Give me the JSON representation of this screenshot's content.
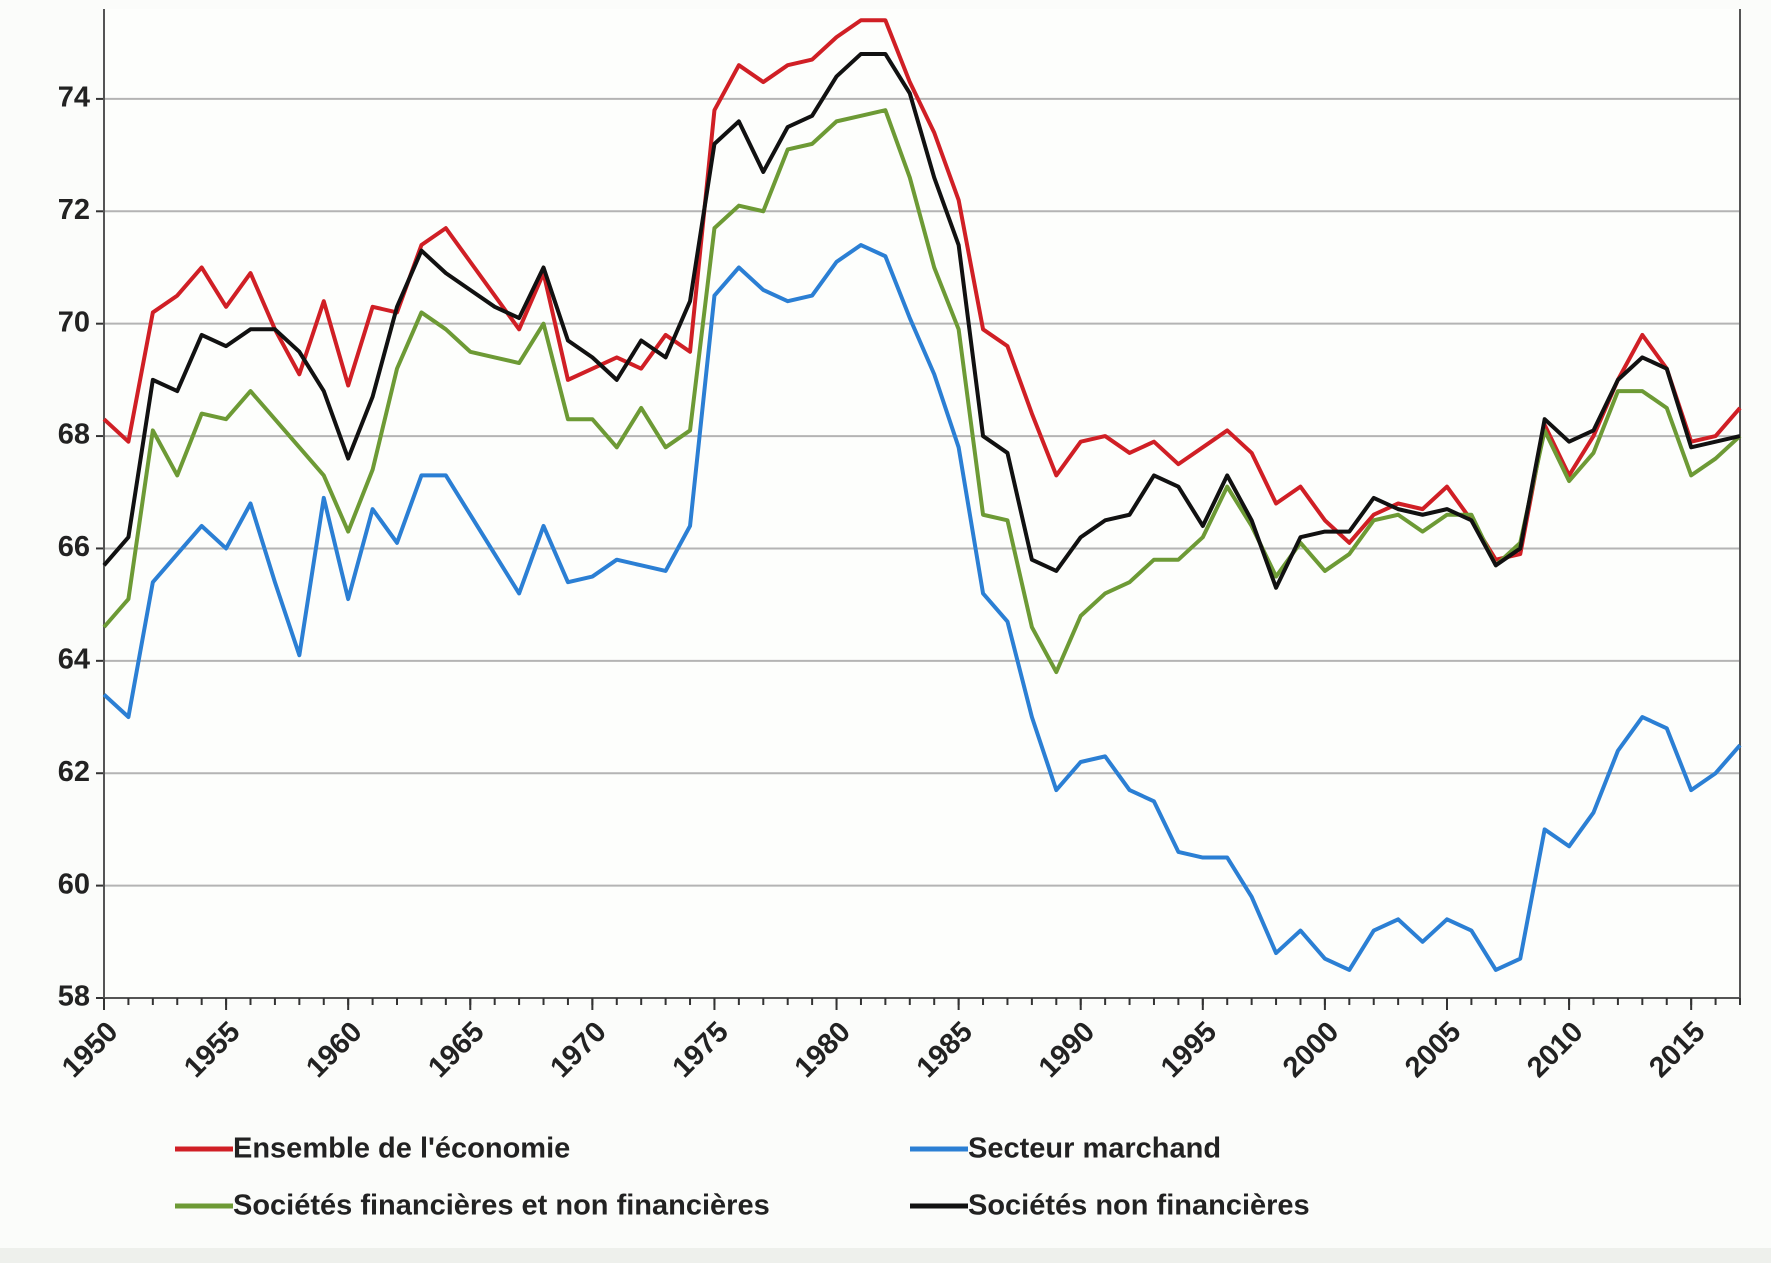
{
  "chart_data": {
    "type": "line",
    "x": [
      1950,
      1951,
      1952,
      1953,
      1954,
      1955,
      1956,
      1957,
      1958,
      1959,
      1960,
      1961,
      1962,
      1963,
      1964,
      1965,
      1966,
      1967,
      1968,
      1969,
      1970,
      1971,
      1972,
      1973,
      1974,
      1975,
      1976,
      1977,
      1978,
      1979,
      1980,
      1981,
      1982,
      1983,
      1984,
      1985,
      1986,
      1987,
      1988,
      1989,
      1990,
      1991,
      1992,
      1993,
      1994,
      1995,
      1996,
      1997,
      1998,
      1999,
      2000,
      2001,
      2002,
      2003,
      2004,
      2005,
      2006,
      2007,
      2008,
      2009,
      2010,
      2011,
      2012,
      2013,
      2014,
      2015,
      2016,
      2017
    ],
    "series": [
      {
        "name": "Ensemble de l'économie",
        "color": "#d01f25",
        "values": [
          68.3,
          67.9,
          70.2,
          70.5,
          71.0,
          70.3,
          70.9,
          69.9,
          69.1,
          70.4,
          68.9,
          70.3,
          70.2,
          71.4,
          71.7,
          71.1,
          70.5,
          69.9,
          70.9,
          69.0,
          69.2,
          69.4,
          69.2,
          69.8,
          69.5,
          73.8,
          74.6,
          74.3,
          74.6,
          74.7,
          75.1,
          75.4,
          75.4,
          74.3,
          73.4,
          72.2,
          69.9,
          69.6,
          68.4,
          67.3,
          67.9,
          68.0,
          67.7,
          67.9,
          67.5,
          67.8,
          68.1,
          67.7,
          66.8,
          67.1,
          66.5,
          66.1,
          66.6,
          66.8,
          66.7,
          67.1,
          66.5,
          65.8,
          65.9,
          68.2,
          67.3,
          68.0,
          69.0,
          69.8,
          69.2,
          67.9,
          68.0,
          68.5
        ]
      },
      {
        "name": "Secteur marchand",
        "color": "#2b7fd4",
        "values": [
          63.4,
          63.0,
          65.4,
          65.9,
          66.4,
          66.0,
          66.8,
          65.4,
          64.1,
          66.9,
          65.1,
          66.7,
          66.1,
          67.3,
          67.3,
          66.6,
          65.9,
          65.2,
          66.4,
          65.4,
          65.5,
          65.8,
          65.7,
          65.6,
          66.4,
          70.5,
          71.0,
          70.6,
          70.4,
          70.5,
          71.1,
          71.4,
          71.2,
          70.1,
          69.1,
          67.8,
          65.2,
          64.7,
          63.0,
          61.7,
          62.2,
          62.3,
          61.7,
          61.5,
          60.6,
          60.5,
          60.5,
          59.8,
          58.8,
          59.2,
          58.7,
          58.5,
          59.2,
          59.4,
          59.0,
          59.4,
          59.2,
          58.5,
          58.7,
          61.0,
          60.7,
          61.3,
          62.4,
          63.0,
          62.8,
          61.7,
          62.0,
          62.5
        ]
      },
      {
        "name": "Sociétés financières et non financières",
        "color": "#6d9a35",
        "values": [
          64.6,
          65.1,
          68.1,
          67.3,
          68.4,
          68.3,
          68.8,
          68.3,
          67.8,
          67.3,
          66.3,
          67.4,
          69.2,
          70.2,
          69.9,
          69.5,
          69.4,
          69.3,
          70.0,
          68.3,
          68.3,
          67.8,
          68.5,
          67.8,
          68.1,
          71.7,
          72.1,
          72.0,
          73.1,
          73.2,
          73.6,
          73.7,
          73.8,
          72.6,
          71.0,
          69.9,
          66.6,
          66.5,
          64.6,
          63.8,
          64.8,
          65.2,
          65.4,
          65.8,
          65.8,
          66.2,
          67.1,
          66.4,
          65.5,
          66.1,
          65.6,
          65.9,
          66.5,
          66.6,
          66.3,
          66.6,
          66.6,
          65.7,
          66.1,
          68.1,
          67.2,
          67.7,
          68.8,
          68.8,
          68.5,
          67.3,
          67.6,
          68.0
        ]
      },
      {
        "name": "Sociétés non financières",
        "color": "#111111",
        "values": [
          65.7,
          66.2,
          69.0,
          68.8,
          69.8,
          69.6,
          69.9,
          69.9,
          69.5,
          68.8,
          67.6,
          68.7,
          70.3,
          71.3,
          70.9,
          70.6,
          70.3,
          70.1,
          71.0,
          69.7,
          69.4,
          69.0,
          69.7,
          69.4,
          70.4,
          73.2,
          73.6,
          72.7,
          73.5,
          73.7,
          74.4,
          74.8,
          74.8,
          74.1,
          72.6,
          71.4,
          68.0,
          67.7,
          65.8,
          65.6,
          66.2,
          66.5,
          66.6,
          67.3,
          67.1,
          66.4,
          67.3,
          66.5,
          65.3,
          66.2,
          66.3,
          66.3,
          66.9,
          66.7,
          66.6,
          66.7,
          66.5,
          65.7,
          66.0,
          68.3,
          67.9,
          68.1,
          69.0,
          69.4,
          69.2,
          67.8,
          67.9,
          68.0
        ]
      }
    ],
    "xlim": [
      1950,
      2017
    ],
    "xticks": [
      1950,
      1955,
      1960,
      1965,
      1970,
      1975,
      1980,
      1985,
      1990,
      1995,
      2000,
      2005,
      2010,
      2015
    ],
    "ylim": [
      58,
      75.6
    ],
    "yticks": [
      58,
      60,
      62,
      64,
      66,
      68,
      70,
      72,
      74
    ],
    "grid": true,
    "legend": "bottom"
  }
}
